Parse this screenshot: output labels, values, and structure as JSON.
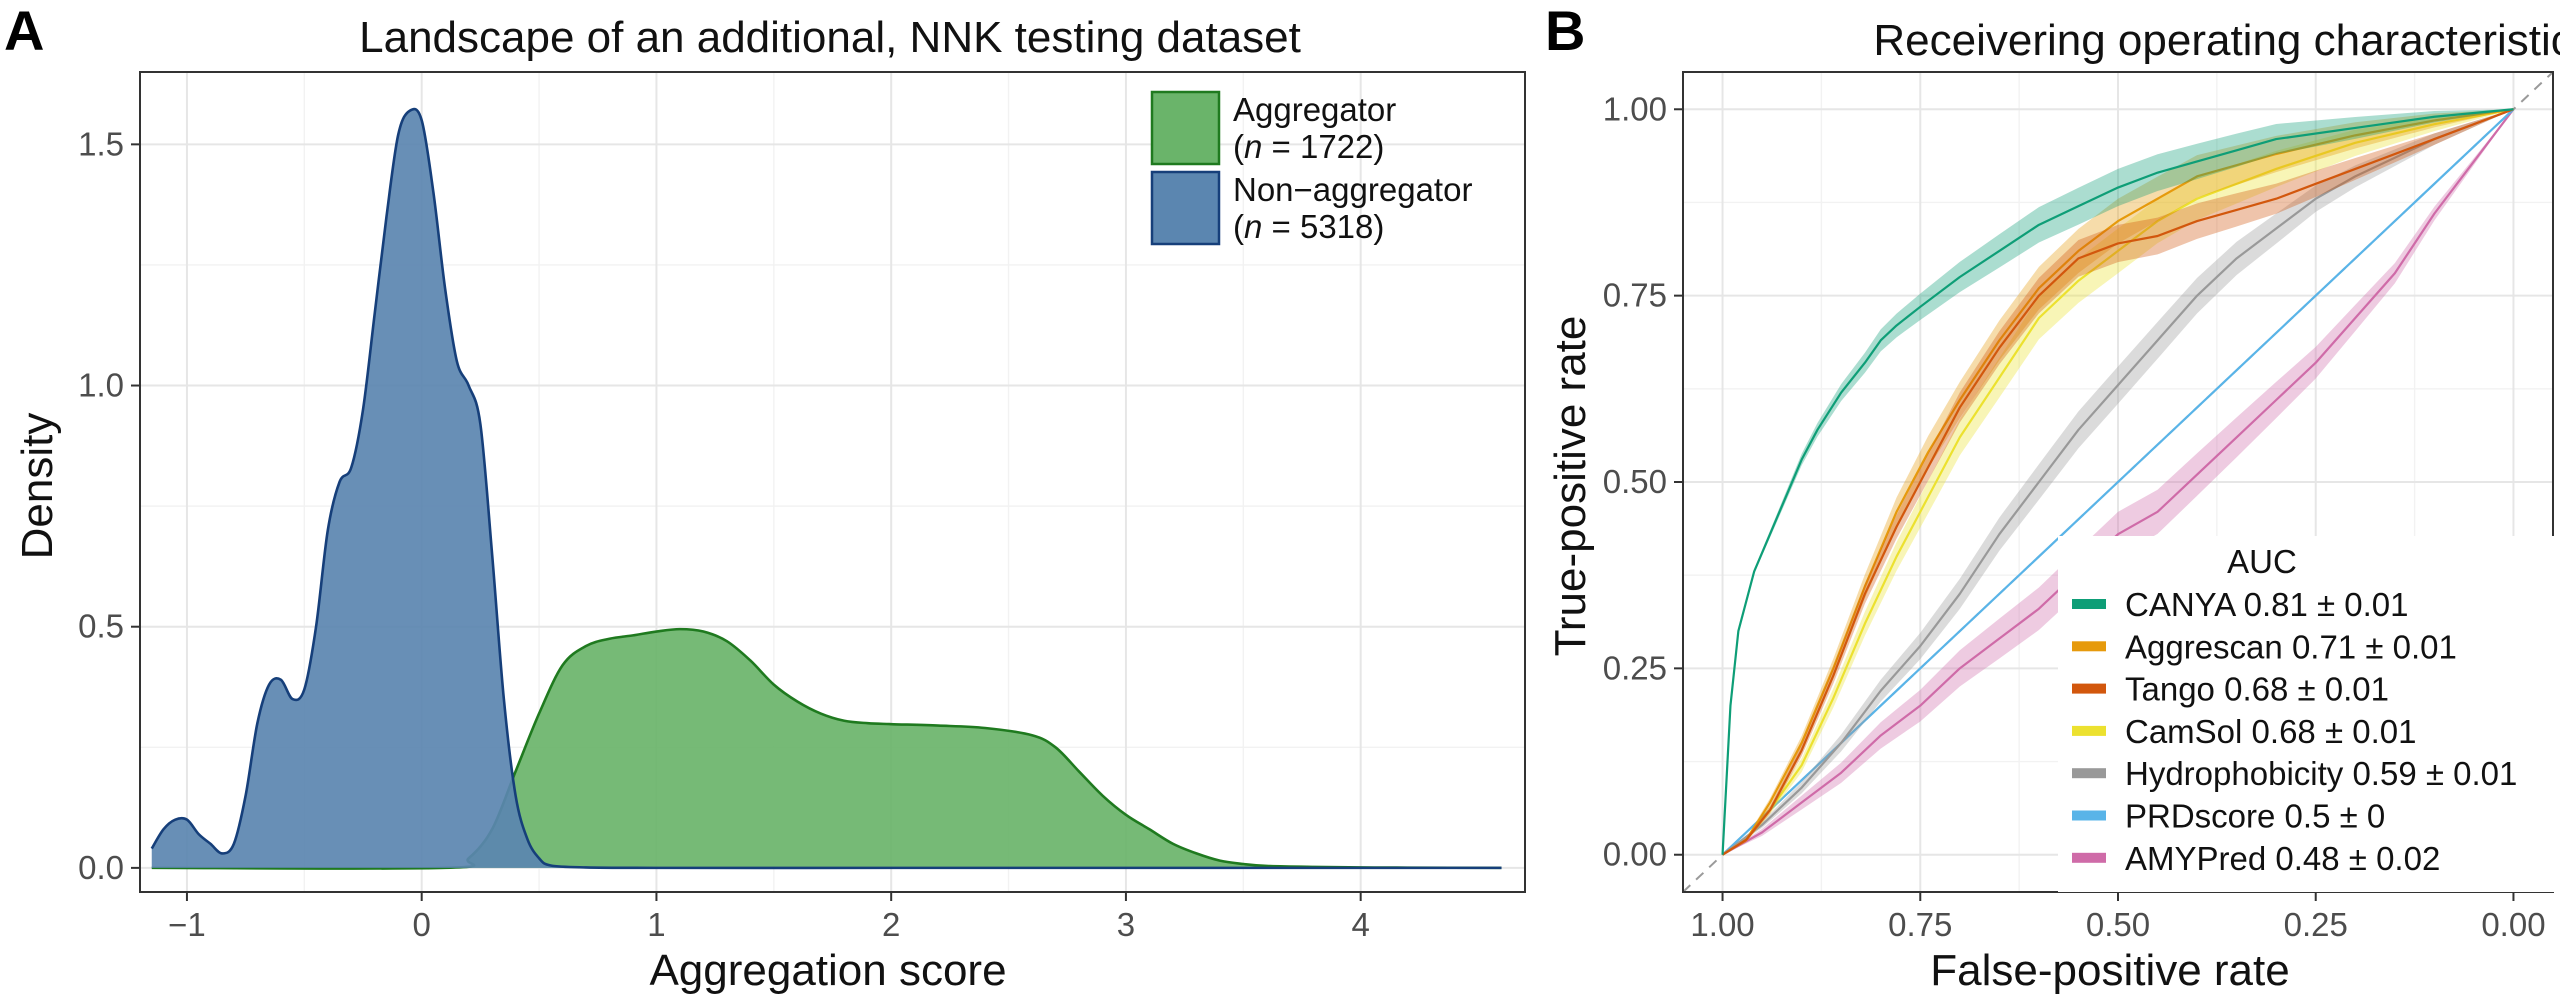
{
  "chart_data": [
    {
      "panel": "A",
      "type": "area",
      "title": "Landscape of an additional, NNK testing dataset",
      "xlabel": "Aggregation score",
      "ylabel": "Density",
      "xlim": [
        -1.2,
        4.7
      ],
      "ylim": [
        -0.05,
        1.65
      ],
      "xticks": [
        -1,
        0,
        1,
        2,
        3,
        4
      ],
      "yticks": [
        0.0,
        0.5,
        1.0,
        1.5
      ],
      "xtick_labels": [
        "−1",
        "0",
        "1",
        "2",
        "3",
        "4"
      ],
      "ytick_labels": [
        "0.0",
        "0.5",
        "1.0",
        "1.5"
      ],
      "legend_placement": "top-right",
      "series": [
        {
          "name": "Aggregator",
          "n_label": "(n = 1722)",
          "n_prefix": "(",
          "n_italic": "n",
          "n_suffix": " = 1722)",
          "fill": "#6ab46a",
          "stroke": "#1f7a1f",
          "x": [
            -1.15,
            0.1,
            0.2,
            0.3,
            0.4,
            0.5,
            0.6,
            0.7,
            0.8,
            0.9,
            1.0,
            1.1,
            1.2,
            1.3,
            1.4,
            1.5,
            1.6,
            1.7,
            1.8,
            1.9,
            2.0,
            2.2,
            2.4,
            2.6,
            2.7,
            2.8,
            2.9,
            3.0,
            3.1,
            3.2,
            3.3,
            3.4,
            3.5,
            3.6,
            3.8,
            4.0,
            4.2,
            4.6
          ],
          "y": [
            0.0,
            0.0,
            0.02,
            0.08,
            0.2,
            0.32,
            0.42,
            0.46,
            0.475,
            0.482,
            0.49,
            0.495,
            0.49,
            0.47,
            0.43,
            0.38,
            0.345,
            0.32,
            0.305,
            0.3,
            0.298,
            0.295,
            0.29,
            0.275,
            0.25,
            0.2,
            0.15,
            0.11,
            0.08,
            0.05,
            0.03,
            0.015,
            0.008,
            0.004,
            0.002,
            0.001,
            0.0005,
            0.0
          ]
        },
        {
          "name": "Non−aggregator",
          "n_label": "(n = 5318)",
          "n_prefix": "(",
          "n_italic": "n",
          "n_suffix": " = 5318)",
          "fill": "#5b86b0",
          "stroke": "#163f7a",
          "x": [
            -1.15,
            -1.1,
            -1.05,
            -1.0,
            -0.95,
            -0.9,
            -0.85,
            -0.8,
            -0.75,
            -0.7,
            -0.65,
            -0.6,
            -0.55,
            -0.5,
            -0.45,
            -0.4,
            -0.35,
            -0.3,
            -0.25,
            -0.2,
            -0.15,
            -0.1,
            -0.05,
            0.0,
            0.05,
            0.1,
            0.15,
            0.2,
            0.25,
            0.3,
            0.35,
            0.4,
            0.45,
            0.5,
            0.55,
            0.7,
            1.0,
            2.0,
            3.0,
            4.0,
            4.6
          ],
          "y": [
            0.04,
            0.08,
            0.1,
            0.1,
            0.07,
            0.05,
            0.03,
            0.05,
            0.15,
            0.3,
            0.38,
            0.39,
            0.35,
            0.37,
            0.5,
            0.7,
            0.8,
            0.83,
            0.95,
            1.15,
            1.35,
            1.52,
            1.57,
            1.55,
            1.4,
            1.2,
            1.05,
            1.0,
            0.92,
            0.65,
            0.35,
            0.15,
            0.06,
            0.02,
            0.005,
            0.001,
            0.0,
            0.0,
            0.0,
            0.0,
            0.0
          ]
        }
      ]
    },
    {
      "panel": "B",
      "type": "line",
      "title": "Receivering operating characteristic curve",
      "xlabel": "False-positive rate",
      "ylabel": "True-positive rate",
      "x_reversed": true,
      "xlim": [
        1.05,
        -0.05
      ],
      "ylim": [
        -0.05,
        1.05
      ],
      "xticks": [
        1.0,
        0.75,
        0.5,
        0.25,
        0.0
      ],
      "yticks": [
        0.0,
        0.25,
        0.5,
        0.75,
        1.0
      ],
      "xtick_labels": [
        "1.00",
        "0.75",
        "0.50",
        "0.25",
        "0.00"
      ],
      "ytick_labels": [
        "0.00",
        "0.25",
        "0.50",
        "0.75",
        "1.00"
      ],
      "diagonal": "dashed",
      "legend_title": "AUC",
      "legend_placement": "bottom-right",
      "series": [
        {
          "name": "CANYA",
          "auc_label": "0.81 ± 0.01",
          "color": "#0e9e77",
          "band": 0.025,
          "fpr": [
            1.0,
            0.995,
            0.99,
            0.98,
            0.96,
            0.94,
            0.92,
            0.9,
            0.88,
            0.85,
            0.82,
            0.8,
            0.78,
            0.75,
            0.7,
            0.65,
            0.6,
            0.55,
            0.5,
            0.45,
            0.4,
            0.35,
            0.3,
            0.2,
            0.1,
            0.0
          ],
          "tpr": [
            0.0,
            0.1,
            0.2,
            0.3,
            0.38,
            0.43,
            0.48,
            0.53,
            0.57,
            0.62,
            0.66,
            0.69,
            0.71,
            0.735,
            0.775,
            0.81,
            0.845,
            0.87,
            0.895,
            0.915,
            0.93,
            0.945,
            0.96,
            0.975,
            0.99,
            1.0
          ]
        },
        {
          "name": "Aggrescan",
          "auc_label": "0.71 ± 0.01",
          "color": "#e69a0c",
          "band": 0.03,
          "fpr": [
            1.0,
            0.97,
            0.94,
            0.9,
            0.86,
            0.82,
            0.78,
            0.74,
            0.7,
            0.65,
            0.6,
            0.55,
            0.5,
            0.45,
            0.4,
            0.3,
            0.2,
            0.1,
            0.0
          ],
          "tpr": [
            0.0,
            0.02,
            0.07,
            0.15,
            0.25,
            0.36,
            0.46,
            0.54,
            0.61,
            0.69,
            0.76,
            0.81,
            0.85,
            0.88,
            0.91,
            0.94,
            0.965,
            0.985,
            1.0
          ]
        },
        {
          "name": "Tango",
          "auc_label": "0.68 ± 0.01",
          "color": "#d2570d",
          "band": 0.025,
          "fpr": [
            1.0,
            0.97,
            0.94,
            0.9,
            0.86,
            0.82,
            0.78,
            0.74,
            0.7,
            0.65,
            0.6,
            0.55,
            0.5,
            0.45,
            0.4,
            0.35,
            0.3,
            0.25,
            0.2,
            0.1,
            0.0
          ],
          "tpr": [
            0.0,
            0.02,
            0.06,
            0.14,
            0.24,
            0.35,
            0.44,
            0.52,
            0.6,
            0.68,
            0.75,
            0.8,
            0.82,
            0.83,
            0.85,
            0.865,
            0.88,
            0.9,
            0.92,
            0.96,
            1.0
          ]
        },
        {
          "name": "CamSol",
          "auc_label": "0.68 ± 0.01",
          "color": "#ece12f",
          "band": 0.03,
          "fpr": [
            1.0,
            0.97,
            0.94,
            0.9,
            0.86,
            0.82,
            0.78,
            0.74,
            0.7,
            0.65,
            0.6,
            0.55,
            0.5,
            0.45,
            0.4,
            0.3,
            0.2,
            0.1,
            0.0
          ],
          "tpr": [
            0.0,
            0.02,
            0.06,
            0.12,
            0.21,
            0.31,
            0.4,
            0.48,
            0.56,
            0.64,
            0.72,
            0.77,
            0.81,
            0.85,
            0.88,
            0.92,
            0.955,
            0.98,
            1.0
          ]
        },
        {
          "name": "Hydrophobicity",
          "auc_label": "0.59 ± 0.01",
          "color": "#999999",
          "band": 0.025,
          "fpr": [
            1.0,
            0.95,
            0.9,
            0.85,
            0.8,
            0.75,
            0.7,
            0.65,
            0.6,
            0.55,
            0.5,
            0.45,
            0.4,
            0.35,
            0.3,
            0.25,
            0.2,
            0.1,
            0.0
          ],
          "tpr": [
            0.0,
            0.04,
            0.09,
            0.15,
            0.22,
            0.28,
            0.35,
            0.43,
            0.5,
            0.57,
            0.63,
            0.69,
            0.75,
            0.8,
            0.84,
            0.88,
            0.91,
            0.96,
            1.0
          ]
        },
        {
          "name": "PRDscore",
          "auc_label": "0.5 ± 0",
          "color": "#59b4e8",
          "band": 0.0,
          "fpr": [
            1.0,
            0.0
          ],
          "tpr": [
            0.0,
            1.0
          ]
        },
        {
          "name": "AMYPred",
          "auc_label": "0.48 ± 0.02",
          "color": "#cf6ba8",
          "band": 0.03,
          "fpr": [
            1.0,
            0.95,
            0.9,
            0.85,
            0.8,
            0.75,
            0.7,
            0.65,
            0.6,
            0.55,
            0.5,
            0.45,
            0.4,
            0.35,
            0.3,
            0.25,
            0.2,
            0.15,
            0.1,
            0.05,
            0.0
          ],
          "tpr": [
            0.0,
            0.03,
            0.07,
            0.11,
            0.16,
            0.2,
            0.25,
            0.29,
            0.33,
            0.38,
            0.43,
            0.46,
            0.51,
            0.56,
            0.61,
            0.66,
            0.72,
            0.78,
            0.86,
            0.93,
            1.0
          ]
        }
      ]
    }
  ]
}
